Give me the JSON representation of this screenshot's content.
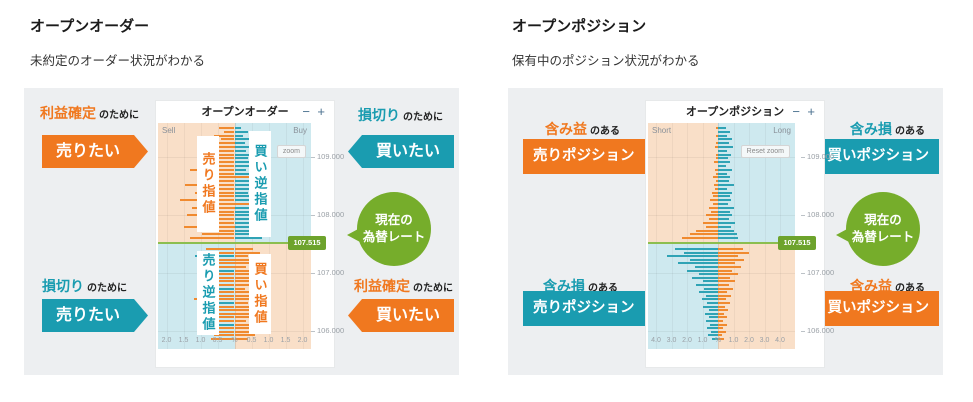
{
  "colors": {
    "orange": "#f0781f",
    "teal": "#1a9cb0",
    "green_bubble": "#76ad2b",
    "badge_green": "#6da32c",
    "rate_line_green": "#8cbe4f",
    "bar_orange": "#f08a2f",
    "bar_teal": "#2fa3b5",
    "bg_peach": "#f9dfc8",
    "bg_blue": "#cee9ef",
    "card_gray": "#edeff1"
  },
  "left_section": {
    "heading": "オープンオーダー",
    "description": "未約定のオーダー状況がわかる",
    "chart": {
      "title": "オープンオーダー",
      "minus": "−",
      "plus": "+",
      "zoom_button": "zoom",
      "side_left": "Sell",
      "side_right": "Buy",
      "rate_badge": "107.515",
      "y_labels": [
        "109.000",
        "108.000",
        "107.000",
        "106.000"
      ],
      "x_labels": [
        "2.0",
        "1.5",
        "1.0",
        "0.5",
        "%",
        "0.5",
        "1.0",
        "1.5",
        "2.0"
      ],
      "quadrants": {
        "ul": "売り指値",
        "ur": "買い逆指値",
        "ll": "売り逆指値",
        "lr": "買い指値"
      }
    },
    "callouts": {
      "tl": {
        "highlight": "利益確定",
        "suffix": "のために",
        "action": "売りたい"
      },
      "tr": {
        "highlight": "損切り",
        "suffix": "のために",
        "action": "買いたい"
      },
      "bl": {
        "highlight": "損切り",
        "suffix": "のために",
        "action": "売りたい"
      },
      "br": {
        "highlight": "利益確定",
        "suffix": "のために",
        "action": "買いたい"
      }
    },
    "rate_bubble": {
      "line1": "現在の",
      "line2": "為替レート"
    }
  },
  "right_section": {
    "heading": "オープンポジション",
    "description": "保有中のポジション状況がわかる",
    "chart": {
      "title": "オープンポジション",
      "minus": "−",
      "plus": "+",
      "zoom_button": "Reset zoom",
      "side_left": "Short",
      "side_right": "Long",
      "rate_badge": "107.515",
      "y_labels": [
        "109.000",
        "108.000",
        "107.000",
        "106.000"
      ],
      "x_labels": [
        "4.0",
        "3.0",
        "2.0",
        "1.0",
        "%",
        "1.0",
        "2.0",
        "3.0",
        "4.0"
      ]
    },
    "callouts": {
      "tl": {
        "highlight": "含み益",
        "suffix": "のある",
        "action": "売りポジション"
      },
      "tr": {
        "highlight": "含み損",
        "suffix": "のある",
        "action": "買いポジション"
      },
      "bl": {
        "highlight": "含み損",
        "suffix": "のある",
        "action": "売りポジション"
      },
      "br": {
        "highlight": "含み益",
        "suffix": "のある",
        "action": "買いポジション"
      }
    },
    "rate_bubble": {
      "line1": "現在の",
      "line2": "為替レート"
    }
  },
  "chart_data": [
    {
      "type": "bar",
      "orientation": "diverging-horizontal",
      "title": "オープンオーダー",
      "x_unit": "%",
      "x_ticks": [
        0.5,
        1.0,
        1.5,
        2.0
      ],
      "x_max": 2.2,
      "y_prices": [
        109.0,
        108.0,
        107.0,
        106.0
      ],
      "current_rate": 107.515,
      "regions": {
        "upper_left": "売り指値",
        "upper_right": "買い逆指値",
        "lower_left": "売り逆指値",
        "lower_right": "買い指値"
      },
      "legend_note": "left bars = sell orders, right bars = buy orders; o = orange (指値), t = teal (逆指値)",
      "rows_above_rate": [
        [
          0.45,
          "o",
          0.2,
          "t"
        ],
        [
          0.3,
          "o",
          0.4,
          "t"
        ],
        [
          0.6,
          "o",
          0.25,
          "t"
        ],
        [
          0.4,
          "o",
          0.55,
          "t"
        ],
        [
          0.75,
          "o",
          0.3,
          "t"
        ],
        [
          0.5,
          "o",
          0.45,
          "t"
        ],
        [
          0.9,
          "o",
          0.35,
          "t"
        ],
        [
          0.55,
          "o",
          0.6,
          "t"
        ],
        [
          1.1,
          "o",
          0.4,
          "t"
        ],
        [
          0.65,
          "o",
          0.75,
          "t"
        ],
        [
          0.85,
          "o",
          0.5,
          "t"
        ],
        [
          1.3,
          "o",
          0.35,
          "t"
        ],
        [
          0.7,
          "o",
          0.65,
          "t"
        ],
        [
          1.0,
          "o",
          0.45,
          "o"
        ],
        [
          0.6,
          "o",
          0.8,
          "t"
        ],
        [
          1.45,
          "o",
          0.55,
          "t"
        ],
        [
          0.8,
          "o",
          0.7,
          "t"
        ],
        [
          1.15,
          "o",
          0.4,
          "t"
        ],
        [
          0.95,
          "o",
          0.85,
          "t"
        ],
        [
          1.6,
          "o",
          0.5,
          "t"
        ],
        [
          0.75,
          "o",
          0.65,
          "o"
        ],
        [
          1.25,
          "o",
          0.9,
          "t"
        ],
        [
          0.9,
          "o",
          0.55,
          "t"
        ],
        [
          1.4,
          "o",
          0.75,
          "t"
        ],
        [
          1.05,
          "o",
          1.0,
          "t"
        ],
        [
          0.8,
          "o",
          0.6,
          "t"
        ],
        [
          1.5,
          "o",
          0.85,
          "t"
        ],
        [
          1.1,
          "o",
          0.7,
          "t"
        ],
        [
          0.95,
          "o",
          0.95,
          "t"
        ],
        [
          1.3,
          "o",
          0.8,
          "t"
        ]
      ],
      "rows_below_rate": [
        [
          0.85,
          "o",
          0.55,
          "o"
        ],
        [
          0.6,
          "o",
          0.75,
          "o"
        ],
        [
          1.15,
          "t",
          0.4,
          "o"
        ],
        [
          0.75,
          "o",
          0.85,
          "o"
        ],
        [
          0.5,
          "o",
          0.6,
          "o"
        ],
        [
          1.0,
          "o",
          0.35,
          "o"
        ],
        [
          0.65,
          "t",
          0.7,
          "o"
        ],
        [
          0.9,
          "o",
          0.5,
          "o"
        ],
        [
          0.45,
          "o",
          0.9,
          "o"
        ],
        [
          1.1,
          "o",
          0.45,
          "o"
        ],
        [
          0.7,
          "o",
          0.65,
          "o"
        ],
        [
          0.95,
          "t",
          0.3,
          "o"
        ],
        [
          0.55,
          "o",
          0.8,
          "o"
        ],
        [
          0.8,
          "o",
          0.5,
          "o"
        ],
        [
          1.2,
          "o",
          0.7,
          "o"
        ],
        [
          0.6,
          "t",
          0.4,
          "o"
        ],
        [
          0.9,
          "o",
          0.6,
          "o"
        ],
        [
          0.5,
          "o",
          0.85,
          "o"
        ],
        [
          0.75,
          "o",
          0.45,
          "o"
        ],
        [
          1.05,
          "o",
          0.65,
          "o"
        ],
        [
          0.65,
          "o",
          0.35,
          "o"
        ],
        [
          0.85,
          "t",
          0.55,
          "o"
        ],
        [
          0.45,
          "o",
          0.7,
          "o"
        ],
        [
          0.95,
          "o",
          0.5,
          "o"
        ],
        [
          0.6,
          "o",
          0.6,
          "o"
        ],
        [
          0.7,
          "o",
          0.4,
          "o"
        ]
      ]
    },
    {
      "type": "bar",
      "orientation": "diverging-horizontal",
      "title": "オープンポジション",
      "x_unit": "%",
      "x_ticks": [
        1.0,
        2.0,
        3.0,
        4.0
      ],
      "x_max": 4.5,
      "y_prices": [
        109.0,
        108.0,
        107.0,
        106.0
      ],
      "current_rate": 107.515,
      "regions": {
        "upper_left": "含み益のある売りポジション",
        "upper_right": "含み損のある買いポジション",
        "lower_left": "含み損のある売りポジション",
        "lower_right": "含み益のある買いポジション"
      },
      "legend_note": "left bars = short positions, right bars = long positions; o = orange (含み益), t = teal (含み損)",
      "rows_above_rate": [
        [
          0.1,
          "o",
          0.5,
          "t"
        ],
        [
          0.0,
          "o",
          0.75,
          "t"
        ],
        [
          0.15,
          "o",
          0.6,
          "t"
        ],
        [
          0.0,
          "o",
          0.9,
          "t"
        ],
        [
          0.1,
          "o",
          0.7,
          "t"
        ],
        [
          0.2,
          "o",
          0.95,
          "t"
        ],
        [
          0.0,
          "o",
          0.55,
          "t"
        ],
        [
          0.15,
          "o",
          0.85,
          "t"
        ],
        [
          0.1,
          "o",
          0.65,
          "t"
        ],
        [
          0.25,
          "o",
          0.75,
          "t"
        ],
        [
          0.0,
          "o",
          0.5,
          "t"
        ],
        [
          0.2,
          "o",
          0.9,
          "t"
        ],
        [
          0.1,
          "o",
          0.6,
          "t"
        ],
        [
          0.3,
          "o",
          0.8,
          "t"
        ],
        [
          0.15,
          "o",
          0.7,
          "t"
        ],
        [
          0.25,
          "o",
          1.0,
          "t"
        ],
        [
          0.2,
          "o",
          0.6,
          "t"
        ],
        [
          0.4,
          "o",
          0.9,
          "t"
        ],
        [
          0.3,
          "o",
          0.75,
          "t"
        ],
        [
          0.5,
          "o",
          0.85,
          "t"
        ],
        [
          0.35,
          "o",
          0.65,
          "t"
        ],
        [
          0.6,
          "o",
          1.0,
          "t"
        ],
        [
          0.45,
          "o",
          0.8,
          "t"
        ],
        [
          0.8,
          "o",
          0.9,
          "t"
        ],
        [
          0.6,
          "o",
          0.7,
          "t"
        ],
        [
          1.0,
          "o",
          1.1,
          "t"
        ],
        [
          0.8,
          "o",
          0.85,
          "t"
        ],
        [
          1.4,
          "o",
          1.0,
          "t"
        ],
        [
          1.8,
          "o",
          1.2,
          "t"
        ],
        [
          2.3,
          "o",
          1.3,
          "t"
        ]
      ],
      "rows_below_rate": [
        [
          2.8,
          "t",
          1.6,
          "o"
        ],
        [
          2.2,
          "t",
          2.0,
          "o"
        ],
        [
          3.3,
          "t",
          1.3,
          "o"
        ],
        [
          1.8,
          "t",
          1.7,
          "o"
        ],
        [
          2.6,
          "t",
          1.1,
          "o"
        ],
        [
          1.5,
          "t",
          1.5,
          "o"
        ],
        [
          2.0,
          "t",
          0.9,
          "o"
        ],
        [
          1.2,
          "t",
          1.3,
          "o"
        ],
        [
          1.7,
          "t",
          0.8,
          "o"
        ],
        [
          1.0,
          "t",
          1.1,
          "o"
        ],
        [
          1.4,
          "t",
          0.7,
          "o"
        ],
        [
          0.9,
          "t",
          0.95,
          "o"
        ],
        [
          1.2,
          "t",
          0.6,
          "o"
        ],
        [
          0.8,
          "t",
          0.85,
          "o"
        ],
        [
          1.05,
          "t",
          0.5,
          "o"
        ],
        [
          0.7,
          "t",
          0.75,
          "o"
        ],
        [
          0.95,
          "t",
          0.45,
          "o"
        ],
        [
          0.6,
          "t",
          0.65,
          "o"
        ],
        [
          0.85,
          "t",
          0.4,
          "o"
        ],
        [
          0.55,
          "t",
          0.6,
          "o"
        ],
        [
          0.75,
          "t",
          0.35,
          "o"
        ],
        [
          0.5,
          "t",
          0.55,
          "o"
        ],
        [
          0.7,
          "t",
          0.3,
          "o"
        ],
        [
          0.45,
          "t",
          0.5,
          "o"
        ],
        [
          0.65,
          "t",
          0.25,
          "o"
        ],
        [
          0.4,
          "t",
          0.4,
          "o"
        ]
      ]
    }
  ]
}
